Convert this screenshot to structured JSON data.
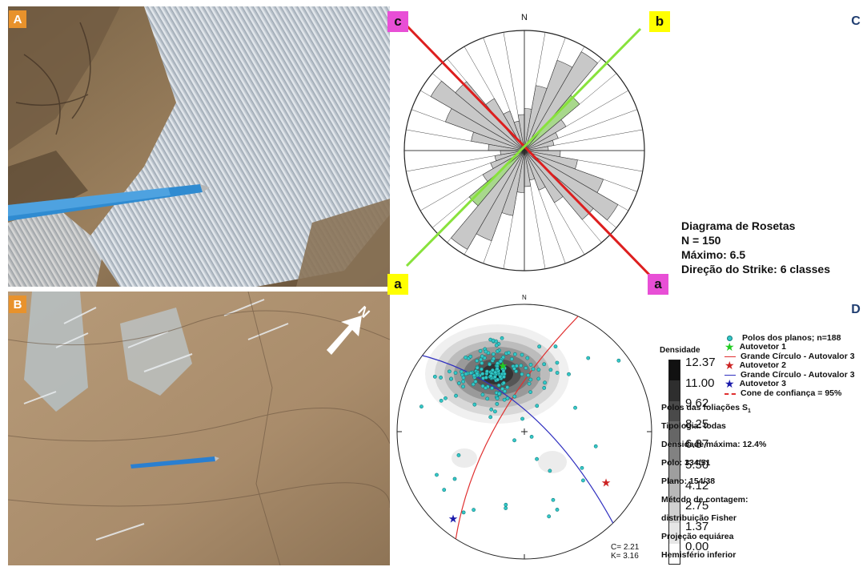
{
  "panels": {
    "a": {
      "label": "A"
    },
    "b": {
      "label": "B",
      "arrow_label": "N"
    },
    "c": {
      "label": "C"
    },
    "d": {
      "label": "D"
    }
  },
  "rose": {
    "north": "N",
    "corner_labels": {
      "top_left": "c",
      "top_right": "b",
      "bottom_left": "a",
      "bottom_right": "a"
    },
    "title": "Diagrama de Rosetas",
    "n": "N = 150",
    "max": "Máximo: 6.5",
    "classes": "Direção do Strike: 6 classes",
    "colors": {
      "line_c": "#dd1f1f",
      "line_b": "#88e23c",
      "petals": "#c8c8c8",
      "green_petals": "#a8d88c"
    }
  },
  "stereonet": {
    "north": "N",
    "legend": {
      "poles": "Polos dos planos; n=188",
      "eig1": "Autovetor 1",
      "gc3a": "Grande Círculo - Autovalor 3",
      "eig2": "Autovetor 2",
      "gc3b": "Grande Círculo - Autovalor 3",
      "eig3": "Autovetor 3",
      "cone": "Cone de confiança = 95%"
    },
    "density_title": "Densidade",
    "scale": [
      "12.37",
      "11.00",
      "9.62",
      "8.25",
      "6.87",
      "5.50",
      "4.12",
      "2.75",
      "1.37",
      "0.00"
    ],
    "stats": {
      "foliation": "Polos das foliações S",
      "foliation_sub": "1",
      "typology": "Tipologia: todas",
      "max_density": "Densidade máxima: 12.4%",
      "pole": "Polo: 334/51",
      "plane": "Plano: 154/38",
      "method": "Método de contagem:",
      "method2": "distribuição Fisher",
      "projection": "Projeção equiárea",
      "hemisphere": "Hemisfério inferior"
    },
    "c_value": "C= 2.21",
    "k_value": "K= 3.16",
    "colors": {
      "poles": "#33c8c8",
      "eig1": "#22cc22",
      "eig2": "#cc2222",
      "eig3": "#1a1aaa",
      "gc_red": "#e03030",
      "gc_blue": "#3030c0"
    }
  }
}
